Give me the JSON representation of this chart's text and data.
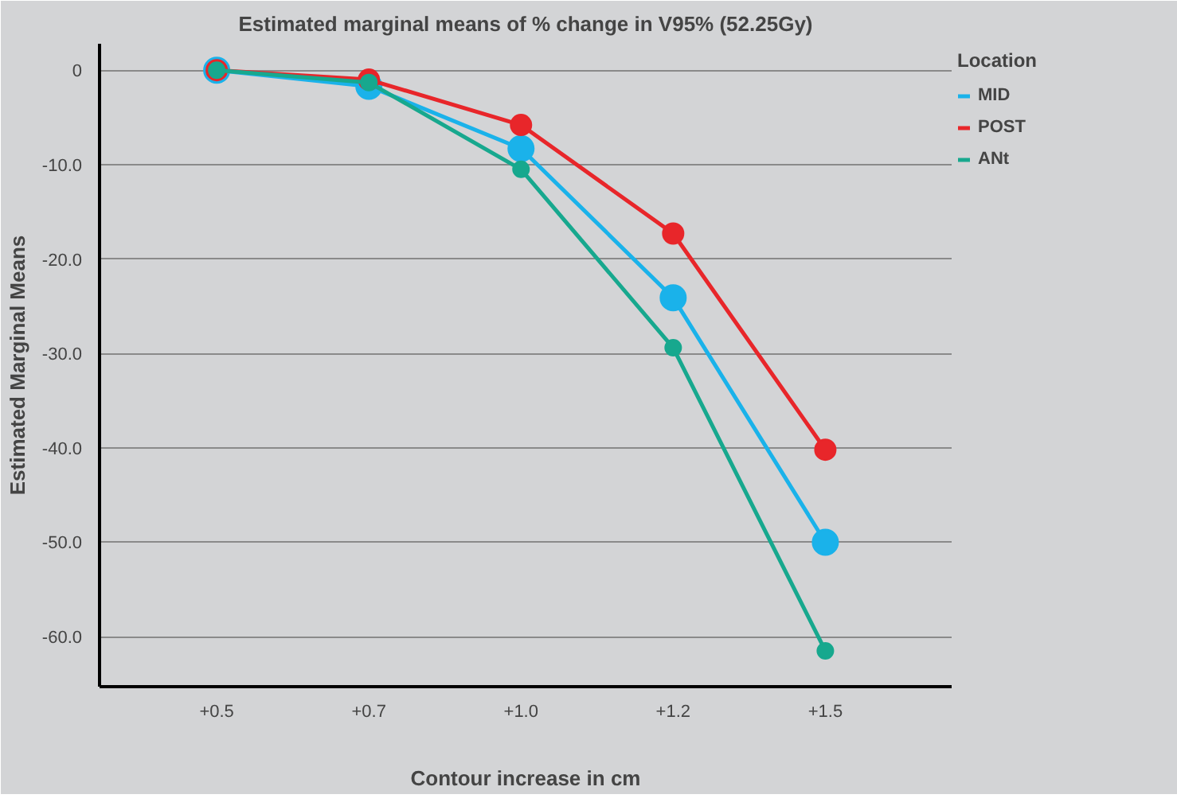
{
  "chart_data": {
    "type": "line",
    "title": "Estimated marginal means of % change in V95% (52.25Gy)",
    "xlabel": "Contour increase in cm",
    "ylabel": "Estimated Marginal Means",
    "legend_title": "Location",
    "categories": [
      "+0.5",
      "+0.7",
      "+1.0",
      "+1.2",
      "+1.5"
    ],
    "series": [
      {
        "name": "MID",
        "color": "#1ab2ea",
        "values": [
          0,
          -1.7,
          -8.3,
          -24.1,
          -50.0
        ]
      },
      {
        "name": "POST",
        "color": "#e8262a",
        "values": [
          0,
          -1.0,
          -5.8,
          -17.3,
          -40.2
        ]
      },
      {
        "name": "ANt",
        "color": "#17a88e",
        "values": [
          0,
          -1.3,
          -10.5,
          -29.4,
          -61.5
        ]
      }
    ],
    "ylim": [
      -65.3,
      2.8
    ],
    "yticks": [
      {
        "value": 0,
        "label": "0"
      },
      {
        "value": -10,
        "label": "-10.0"
      },
      {
        "value": -20,
        "label": "-20.0"
      },
      {
        "value": -30,
        "label": "-30.0"
      },
      {
        "value": -40,
        "label": "-40.0"
      },
      {
        "value": -50,
        "label": "-50.0"
      },
      {
        "value": -60,
        "label": "-60.0"
      }
    ],
    "grid": "y",
    "legend": "right",
    "marker": "circle",
    "line_style": "solid"
  }
}
